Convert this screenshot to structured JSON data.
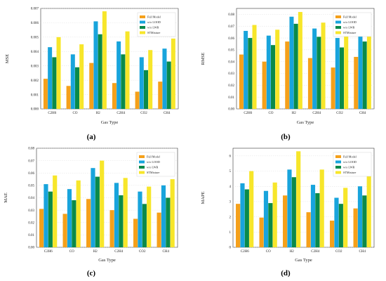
{
  "figure_labels": [
    "(a)",
    "(b)",
    "(c)",
    "(d)"
  ],
  "colors": {
    "Full Model": "#f5a01a",
    "w/o LOOD": "#18a4dc",
    "w/o LWR": "#0a8a4a",
    "STMixture": "#f7e62a"
  },
  "chart_data": [
    {
      "type": "bar",
      "panel": "(a)",
      "xlabel": "Gas Type",
      "ylabel": "MSE",
      "categories": [
        "C2H6",
        "CO",
        "H2",
        "C2H4",
        "CO2",
        "CH4"
      ],
      "ylim": [
        0,
        0.007
      ],
      "yticks": [
        0.0,
        0.001,
        0.002,
        0.003,
        0.004,
        0.005,
        0.006,
        0.007
      ],
      "ytick_labels": [
        "0.000",
        "0.001",
        "0.002",
        "0.003",
        "0.004",
        "0.005",
        "0.006",
        "0.007"
      ],
      "legend_position": "top-right",
      "grid": true,
      "series": [
        {
          "name": "Full Model",
          "values": [
            0.0021,
            0.0016,
            0.0032,
            0.0018,
            0.0012,
            0.0019
          ]
        },
        {
          "name": "w/o LOOD",
          "values": [
            0.0043,
            0.0038,
            0.0061,
            0.0047,
            0.0036,
            0.0042
          ]
        },
        {
          "name": "w/o LWR",
          "values": [
            0.0036,
            0.0029,
            0.0052,
            0.0038,
            0.0027,
            0.0033
          ]
        },
        {
          "name": "STMixture",
          "values": [
            0.005,
            0.0045,
            0.0068,
            0.0054,
            0.0041,
            0.0049
          ]
        }
      ]
    },
    {
      "type": "bar",
      "panel": "(b)",
      "xlabel": "Gas Type",
      "ylabel": "RMSE",
      "categories": [
        "C2H6",
        "CO",
        "H2",
        "C2H4",
        "CO2",
        "CH4"
      ],
      "ylim": [
        0,
        0.085
      ],
      "yticks": [
        0.0,
        0.01,
        0.02,
        0.03,
        0.04,
        0.05,
        0.06,
        0.07,
        0.08
      ],
      "ytick_labels": [
        "0.00",
        "0.01",
        "0.02",
        "0.03",
        "0.04",
        "0.05",
        "0.06",
        "0.07",
        "0.08"
      ],
      "legend_position": "top-right",
      "grid": true,
      "series": [
        {
          "name": "Full Model",
          "values": [
            0.046,
            0.04,
            0.057,
            0.043,
            0.035,
            0.044
          ]
        },
        {
          "name": "w/o LOOD",
          "values": [
            0.066,
            0.062,
            0.078,
            0.068,
            0.06,
            0.065
          ]
        },
        {
          "name": "w/o LWR",
          "values": [
            0.06,
            0.054,
            0.072,
            0.061,
            0.052,
            0.057
          ]
        },
        {
          "name": "STMixture",
          "values": [
            0.071,
            0.067,
            0.082,
            0.073,
            0.064,
            0.07
          ]
        }
      ]
    },
    {
      "type": "bar",
      "panel": "(c)",
      "xlabel": "Gas Type",
      "ylabel": "MAE",
      "categories": [
        "C2H6",
        "CO",
        "H2",
        "C2H4",
        "CO2",
        "CH4"
      ],
      "ylim": [
        0,
        0.08
      ],
      "yticks": [
        0.0,
        0.01,
        0.02,
        0.03,
        0.04,
        0.05,
        0.06,
        0.07,
        0.08
      ],
      "ytick_labels": [
        "0.00",
        "0.01",
        "0.02",
        "0.03",
        "0.04",
        "0.05",
        "0.06",
        "0.07",
        "0.08"
      ],
      "legend_position": "top-right",
      "grid": true,
      "series": [
        {
          "name": "Full Model",
          "values": [
            0.031,
            0.027,
            0.039,
            0.03,
            0.023,
            0.028
          ]
        },
        {
          "name": "w/o LOOD",
          "values": [
            0.051,
            0.047,
            0.064,
            0.052,
            0.045,
            0.05
          ]
        },
        {
          "name": "w/o LWR",
          "values": [
            0.045,
            0.038,
            0.057,
            0.042,
            0.035,
            0.04
          ]
        },
        {
          "name": "STMixture",
          "values": [
            0.058,
            0.054,
            0.07,
            0.056,
            0.049,
            0.055
          ]
        }
      ]
    },
    {
      "type": "bar",
      "panel": "(d)",
      "xlabel": "Gas Type",
      "ylabel": "MAPE",
      "categories": [
        "C2H6",
        "CO",
        "H2",
        "C2H4",
        "CO2",
        "CH4"
      ],
      "ylim": [
        0,
        6.5
      ],
      "yticks": [
        0,
        1,
        2,
        3,
        4,
        5,
        6
      ],
      "ytick_labels": [
        "0",
        "1",
        "2",
        "3",
        "4",
        "5",
        "6"
      ],
      "legend_position": "top-right",
      "grid": true,
      "series": [
        {
          "name": "Full Model",
          "values": [
            2.85,
            1.95,
            3.4,
            2.3,
            1.75,
            2.55
          ]
        },
        {
          "name": "w/o LOOD",
          "values": [
            4.2,
            3.7,
            5.1,
            4.1,
            3.25,
            4.0
          ]
        },
        {
          "name": "w/o LWR",
          "values": [
            3.8,
            2.9,
            4.6,
            3.55,
            2.85,
            3.4
          ]
        },
        {
          "name": "STMixture",
          "values": [
            5.0,
            4.25,
            6.3,
            5.1,
            3.9,
            4.9
          ]
        }
      ]
    }
  ]
}
